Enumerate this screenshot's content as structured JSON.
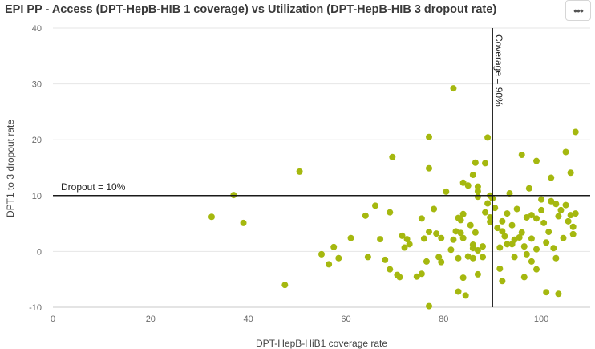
{
  "header": {
    "title": "EPI PP - Access (DPT-HepB-HIB 1 coverage) vs Utilization (DPT-HepB-HIB 3 dropout rate)",
    "menu_label": "•••",
    "menu_icon": "more-horizontal-icon"
  },
  "chart_data": {
    "type": "scatter",
    "title": "EPI PP - Access (DPT-HepB-HIB 1 coverage) vs Utilization (DPT-HepB-HIB 3 dropout rate)",
    "xlabel": "DPT-HepB-HiB1 coverage rate",
    "ylabel": "DPT1 to 3 dropout rate",
    "xlim": [
      0,
      110
    ],
    "ylim": [
      -10,
      40
    ],
    "xticks": [
      0,
      20,
      40,
      60,
      80,
      100
    ],
    "yticks": [
      -10,
      0,
      10,
      20,
      30,
      40
    ],
    "x_tick_labels": [
      "0",
      "20",
      "40",
      "60",
      "80",
      "100"
    ],
    "y_tick_labels": [
      "-10",
      "0",
      "10",
      "20",
      "30",
      "40"
    ],
    "grid": {
      "horizontal": true,
      "vertical": false
    },
    "marker_color": "#a5b80f",
    "reference_lines": [
      {
        "axis": "y",
        "value": 10,
        "label": "Dropout = 10%"
      },
      {
        "axis": "x",
        "value": 90,
        "label": "Coverage = 90%"
      }
    ],
    "points": [
      [
        32.5,
        6.2
      ],
      [
        37,
        10.1
      ],
      [
        39,
        5.1
      ],
      [
        47.5,
        -6
      ],
      [
        50.5,
        14.3
      ],
      [
        55,
        -0.5
      ],
      [
        56.5,
        -2.3
      ],
      [
        57.5,
        0.8
      ],
      [
        58.5,
        -1.2
      ],
      [
        61,
        2.4
      ],
      [
        64,
        6.4
      ],
      [
        64.5,
        -1
      ],
      [
        66,
        8.2
      ],
      [
        67,
        2.2
      ],
      [
        68,
        -1.5
      ],
      [
        69,
        7
      ],
      [
        69,
        -3.2
      ],
      [
        69.5,
        16.9
      ],
      [
        70.5,
        -4.2
      ],
      [
        71,
        -4.6
      ],
      [
        71.5,
        2.8
      ],
      [
        72,
        0.7
      ],
      [
        72.5,
        2.2
      ],
      [
        73,
        1.3
      ],
      [
        74.5,
        -4.5
      ],
      [
        75.5,
        -4
      ],
      [
        75.5,
        5.9
      ],
      [
        76,
        2.3
      ],
      [
        76.5,
        -1.8
      ],
      [
        77,
        3.5
      ],
      [
        77,
        20.5
      ],
      [
        77,
        14.9
      ],
      [
        77,
        -9.8
      ],
      [
        78,
        7.6
      ],
      [
        78.5,
        3.2
      ],
      [
        79,
        -1
      ],
      [
        79.5,
        -1.9
      ],
      [
        79.5,
        2.4
      ],
      [
        80.5,
        10.7
      ],
      [
        81.5,
        0.3
      ],
      [
        82,
        29.2
      ],
      [
        82,
        2.1
      ],
      [
        82.5,
        3.6
      ],
      [
        83,
        6
      ],
      [
        83,
        -1.2
      ],
      [
        83,
        -7.2
      ],
      [
        83.5,
        5.6
      ],
      [
        83.5,
        3.3
      ],
      [
        84,
        12.3
      ],
      [
        84,
        6.7
      ],
      [
        84,
        2.4
      ],
      [
        84,
        -4.7
      ],
      [
        84.5,
        -7.9
      ],
      [
        85,
        11.8
      ],
      [
        85,
        -0.9
      ],
      [
        85.5,
        4.7
      ],
      [
        86,
        1.2
      ],
      [
        86,
        0.6
      ],
      [
        86,
        -1.2
      ],
      [
        86,
        13.7
      ],
      [
        86.5,
        15.9
      ],
      [
        86.5,
        3.4
      ],
      [
        87,
        11.6
      ],
      [
        87,
        10.8
      ],
      [
        87,
        9.8
      ],
      [
        87,
        0.2
      ],
      [
        87,
        -4.1
      ],
      [
        88,
        0.9
      ],
      [
        88,
        -1
      ],
      [
        88.5,
        15.8
      ],
      [
        88.5,
        7
      ],
      [
        89,
        20.4
      ],
      [
        89,
        8.6
      ],
      [
        89.5,
        10
      ],
      [
        89.5,
        6.1
      ],
      [
        89.5,
        5.3
      ],
      [
        90,
        9.5
      ],
      [
        90.5,
        7.8
      ],
      [
        91,
        4.2
      ],
      [
        91.5,
        0.7
      ],
      [
        91.5,
        -3.1
      ],
      [
        92,
        5.4
      ],
      [
        92,
        3.6
      ],
      [
        92,
        -5.3
      ],
      [
        92.5,
        2.7
      ],
      [
        93,
        6.8
      ],
      [
        93,
        1.3
      ],
      [
        93.5,
        10.4
      ],
      [
        94,
        4.7
      ],
      [
        94,
        1.3
      ],
      [
        94.5,
        2.1
      ],
      [
        94.5,
        -1
      ],
      [
        95,
        7.6
      ],
      [
        95.5,
        2.5
      ],
      [
        96,
        17.3
      ],
      [
        96,
        3.4
      ],
      [
        96.5,
        0.9
      ],
      [
        96.5,
        -4.6
      ],
      [
        97,
        6.1
      ],
      [
        97,
        -0.5
      ],
      [
        97.5,
        11.3
      ],
      [
        98,
        6.5
      ],
      [
        98,
        2.3
      ],
      [
        98,
        -1.8
      ],
      [
        99,
        16.2
      ],
      [
        99,
        5.9
      ],
      [
        99,
        0.4
      ],
      [
        99,
        -3.2
      ],
      [
        100,
        7.4
      ],
      [
        100,
        9.3
      ],
      [
        100.5,
        5.1
      ],
      [
        101,
        1.6
      ],
      [
        101,
        -7.3
      ],
      [
        101.5,
        3.5
      ],
      [
        102,
        13.2
      ],
      [
        102,
        9
      ],
      [
        102.5,
        0.6
      ],
      [
        103,
        8.5
      ],
      [
        103,
        -1.2
      ],
      [
        103.5,
        6.3
      ],
      [
        103.5,
        -7.6
      ],
      [
        104,
        7.4
      ],
      [
        104.5,
        2.4
      ],
      [
        105,
        17.8
      ],
      [
        105,
        8.3
      ],
      [
        105.5,
        5.4
      ],
      [
        106,
        14.1
      ],
      [
        106,
        6.5
      ],
      [
        106.5,
        4.4
      ],
      [
        106.5,
        3.1
      ],
      [
        107,
        21.4
      ],
      [
        107,
        6.8
      ]
    ]
  }
}
